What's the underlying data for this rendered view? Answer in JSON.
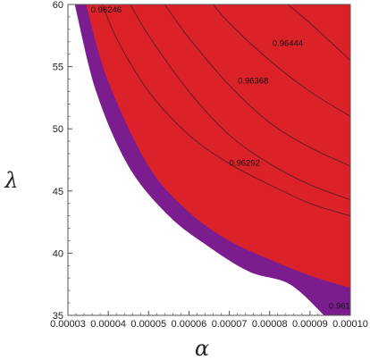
{
  "chart_data": {
    "type": "contour",
    "xlabel": "α",
    "ylabel": "λ",
    "xlim": [
      3e-05,
      0.0001
    ],
    "ylim": [
      35,
      60
    ],
    "x_ticks": [
      "0.00003",
      "0.00004",
      "0.00005",
      "0.00006",
      "0.00007",
      "0.00008",
      "0.00009",
      "0.00010"
    ],
    "y_ticks": [
      "35",
      "40",
      "45",
      "50",
      "55",
      "60"
    ],
    "regions": [
      {
        "fill": "#7b1c8f",
        "lower_boundary": [
          [
            3.17e-05,
            60
          ],
          [
            3.7e-05,
            53
          ],
          [
            4.5e-05,
            47
          ],
          [
            5.5e-05,
            43
          ],
          [
            6.5e-05,
            40.5
          ],
          [
            7.5e-05,
            38.5
          ],
          [
            8.5e-05,
            37.5
          ],
          [
            9.35e-05,
            35
          ]
        ]
      },
      {
        "fill": "#dc2229",
        "lower_boundary": [
          [
            3.45e-05,
            60
          ],
          [
            4e-05,
            53.8
          ],
          [
            5e-05,
            47
          ],
          [
            6e-05,
            43.3
          ],
          [
            7e-05,
            41
          ],
          [
            8e-05,
            39.5
          ],
          [
            9e-05,
            38.2
          ],
          [
            0.0001,
            37.2
          ]
        ]
      }
    ],
    "contours": [
      {
        "value": "0.96246",
        "points": [
          [
            3.85e-05,
            60
          ],
          [
            4.25e-05,
            57
          ],
          [
            5e-05,
            53
          ],
          [
            6e-05,
            49.5
          ],
          [
            7e-05,
            47.2
          ],
          [
            8e-05,
            45.5
          ],
          [
            9e-05,
            44
          ],
          [
            0.0001,
            43
          ]
        ]
      },
      {
        "value": "0.96292",
        "points": [
          [
            4.55e-05,
            60
          ],
          [
            5e-05,
            57.5
          ],
          [
            6e-05,
            53
          ],
          [
            7e-05,
            49.5
          ],
          [
            8e-05,
            47.2
          ],
          [
            9e-05,
            45.5
          ],
          [
            0.0001,
            44.3
          ]
        ]
      },
      {
        "value": "0.96368",
        "points": [
          [
            5.4e-05,
            60
          ],
          [
            6e-05,
            57.3
          ],
          [
            7e-05,
            53.5
          ],
          [
            8e-05,
            50.5
          ],
          [
            9e-05,
            48.5
          ],
          [
            0.0001,
            47
          ]
        ]
      },
      {
        "value": "0.96444",
        "points": [
          [
            6.6e-05,
            60
          ],
          [
            7e-05,
            58.5
          ],
          [
            8e-05,
            55.5
          ],
          [
            9e-05,
            53
          ],
          [
            0.0001,
            51
          ]
        ]
      },
      {
        "value": "",
        "points": [
          [
            8.45e-05,
            60
          ],
          [
            9e-05,
            58.5
          ],
          [
            0.0001,
            55.5
          ]
        ]
      }
    ],
    "contour_labels": [
      {
        "text": "0.96246",
        "x": 3.95e-05,
        "y": 59.6
      },
      {
        "text": "0.96444",
        "x": 8.45e-05,
        "y": 56.9
      },
      {
        "text": "0.96368",
        "x": 7.59e-05,
        "y": 53.9
      },
      {
        "text": "0.96292",
        "x": 7.38e-05,
        "y": 47.3
      },
      {
        "text": "0.961",
        "x": 9.73e-05,
        "y": 35.8
      }
    ]
  }
}
